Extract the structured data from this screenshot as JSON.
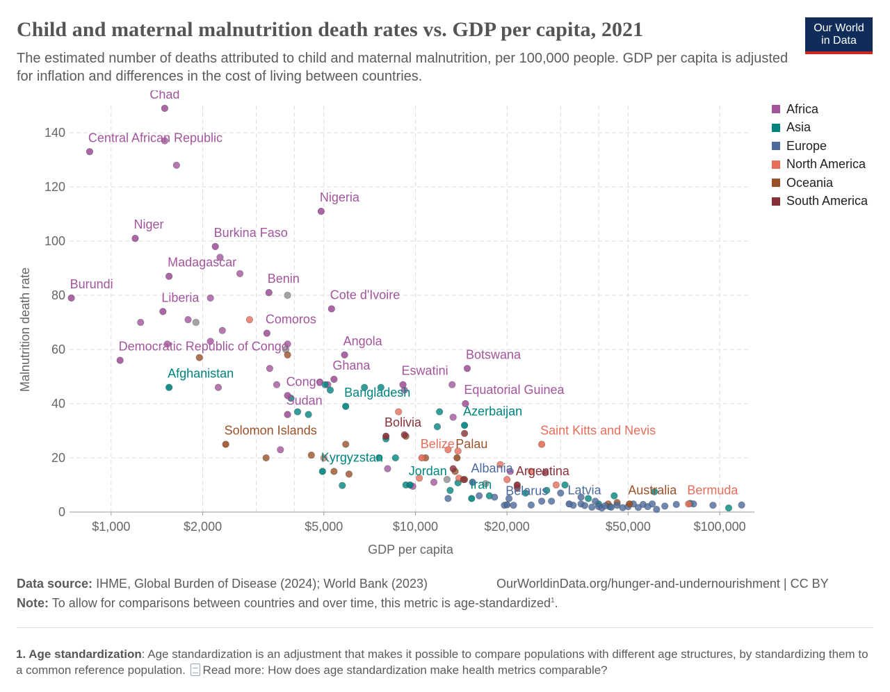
{
  "header": {
    "title": "Child and maternal malnutrition death rates vs. GDP per capita, 2021",
    "subtitle": "The estimated number of deaths attributed to child and maternal malnutrition, per 100,000 people. GDP per capita is adjusted for inflation and differences in the cost of living between countries.",
    "logo_line1": "Our World",
    "logo_line2": "in Data"
  },
  "legend": [
    {
      "name": "Africa",
      "color": "#a2559c"
    },
    {
      "name": "Asia",
      "color": "#00847e"
    },
    {
      "name": "Europe",
      "color": "#4c6a9c"
    },
    {
      "name": "North America",
      "color": "#e56e5a"
    },
    {
      "name": "Oceania",
      "color": "#9a5129"
    },
    {
      "name": "South America",
      "color": "#883039"
    }
  ],
  "footer": {
    "source_label": "Data source:",
    "source_text": "IHME, Global Burden of Disease (2024); World Bank (2023)",
    "source_right": "OurWorldinData.org/hunger-and-undernourishment | CC BY",
    "note_label": "Note:",
    "note_text": "To allow for comparisons between countries and over time, this metric is age-standardized",
    "note_sup": "1",
    "note_end": ".",
    "footnote_label": "1. Age standardization",
    "footnote_text": ": Age standardization is an adjustment that makes it possible to compare populations with different age structures, by standardizing them to a common reference population.",
    "read_more": "Read more: How does age standardization make health metrics comparable?"
  },
  "chart_data": {
    "type": "scatter",
    "title": "Child and maternal malnutrition death rates vs. GDP per capita, 2021",
    "xlabel": "GDP per capita",
    "ylabel": "Malnutrition death rate",
    "x_scale": "log",
    "xlim": [
      730,
      130000
    ],
    "ylim": [
      0,
      150
    ],
    "x_ticks": [
      {
        "value": 1000,
        "label": "$1,000"
      },
      {
        "value": 2000,
        "label": "$2,000"
      },
      {
        "value": 5000,
        "label": "$5,000"
      },
      {
        "value": 10000,
        "label": "$10,000"
      },
      {
        "value": 20000,
        "label": "$20,000"
      },
      {
        "value": 50000,
        "label": "$50,000"
      },
      {
        "value": 100000,
        "label": "$100,000"
      }
    ],
    "x_grid": [
      1000,
      2000,
      3000,
      4000,
      5000,
      10000,
      20000,
      30000,
      40000,
      50000,
      100000
    ],
    "y_ticks": [
      0,
      20,
      40,
      60,
      80,
      100,
      120,
      140
    ],
    "grid": true,
    "colors": {
      "Africa": "#a2559c",
      "Asia": "#00847e",
      "Europe": "#4c6a9c",
      "North America": "#e56e5a",
      "Oceania": "#9a5129",
      "South America": "#883039",
      "Other": "#8c8c8c"
    },
    "labeled_points": [
      {
        "name": "Chad",
        "region": "Africa",
        "x": 1500,
        "y": 149
      },
      {
        "name": "Central African Republic",
        "region": "Africa",
        "x": 850,
        "y": 133
      },
      {
        "name": "Nigeria",
        "region": "Africa",
        "x": 4900,
        "y": 111
      },
      {
        "name": "Niger",
        "region": "Africa",
        "x": 1200,
        "y": 101
      },
      {
        "name": "Burkina Faso",
        "region": "Africa",
        "x": 2200,
        "y": 98
      },
      {
        "name": "Madagascar",
        "region": "Africa",
        "x": 1550,
        "y": 87
      },
      {
        "name": "Burundi",
        "region": "Africa",
        "x": 740,
        "y": 79
      },
      {
        "name": "Benin",
        "region": "Africa",
        "x": 3300,
        "y": 81
      },
      {
        "name": "Liberia",
        "region": "Africa",
        "x": 1480,
        "y": 74
      },
      {
        "name": "Cote d'Ivoire",
        "region": "Africa",
        "x": 5300,
        "y": 75
      },
      {
        "name": "Comoros",
        "region": "Africa",
        "x": 3250,
        "y": 66
      },
      {
        "name": "Democratic Republic of Congo",
        "region": "Africa",
        "x": 1070,
        "y": 56
      },
      {
        "name": "Angola",
        "region": "Africa",
        "x": 5850,
        "y": 58
      },
      {
        "name": "Botswana",
        "region": "Africa",
        "x": 14800,
        "y": 53
      },
      {
        "name": "Afghanistan",
        "region": "Asia",
        "x": 1550,
        "y": 46
      },
      {
        "name": "Ghana",
        "region": "Africa",
        "x": 5400,
        "y": 49
      },
      {
        "name": "Eswatini",
        "region": "Africa",
        "x": 9100,
        "y": 47
      },
      {
        "name": "Congo",
        "region": "Africa",
        "x": 3800,
        "y": 43
      },
      {
        "name": "Bangladesh",
        "region": "Asia",
        "x": 5900,
        "y": 39
      },
      {
        "name": "Equatorial Guinea",
        "region": "Africa",
        "x": 14600,
        "y": 40
      },
      {
        "name": "Sudan",
        "region": "Africa",
        "x": 3800,
        "y": 36
      },
      {
        "name": "Azerbaijan",
        "region": "Asia",
        "x": 14500,
        "y": 32
      },
      {
        "name": "Bolivia",
        "region": "South America",
        "x": 8000,
        "y": 28
      },
      {
        "name": "Solomon Islands",
        "region": "Oceania",
        "x": 2380,
        "y": 25
      },
      {
        "name": "Saint Kitts and Nevis",
        "region": "North America",
        "x": 26000,
        "y": 25
      },
      {
        "name": "Belize",
        "region": "North America",
        "x": 10500,
        "y": 20
      },
      {
        "name": "Palau",
        "region": "Oceania",
        "x": 13700,
        "y": 20
      },
      {
        "name": "Kyrgyzstan",
        "region": "Asia",
        "x": 4950,
        "y": 15
      },
      {
        "name": "Albania",
        "region": "Europe",
        "x": 15400,
        "y": 11
      },
      {
        "name": "Jordan",
        "region": "Asia",
        "x": 9600,
        "y": 10
      },
      {
        "name": "Argentina",
        "region": "South America",
        "x": 21600,
        "y": 10
      },
      {
        "name": "Iran",
        "region": "Asia",
        "x": 15300,
        "y": 5
      },
      {
        "name": "Belarus",
        "region": "Europe",
        "x": 20000,
        "y": 2.7
      },
      {
        "name": "Latvia",
        "region": "Europe",
        "x": 32000,
        "y": 3
      },
      {
        "name": "Australia",
        "region": "Oceania",
        "x": 50500,
        "y": 3
      },
      {
        "name": "Bermuda",
        "region": "North America",
        "x": 79000,
        "y": 3
      }
    ],
    "points": [
      [
        "Africa",
        1500,
        137
      ],
      [
        "Africa",
        1640,
        128
      ],
      [
        "Africa",
        2280,
        94
      ],
      [
        "Africa",
        2650,
        88
      ],
      [
        "Africa",
        2120,
        79
      ],
      [
        "Africa",
        1790,
        71
      ],
      [
        "Africa",
        1250,
        70
      ],
      [
        "Africa",
        2320,
        67
      ],
      [
        "Africa",
        1530,
        62
      ],
      [
        "Africa",
        2120,
        63
      ],
      [
        "Africa",
        3800,
        62
      ],
      [
        "Africa",
        3320,
        53
      ],
      [
        "Africa",
        3500,
        47
      ],
      [
        "Africa",
        2250,
        46
      ],
      [
        "Africa",
        4850,
        48
      ],
      [
        "Africa",
        5150,
        47
      ],
      [
        "Africa",
        13200,
        47
      ],
      [
        "Africa",
        9200,
        45
      ],
      [
        "Africa",
        3600,
        23
      ],
      [
        "Africa",
        13300,
        35
      ],
      [
        "Africa",
        8100,
        16
      ],
      [
        "Africa",
        9800,
        9.5
      ],
      [
        "Africa",
        11500,
        11
      ],
      [
        "Africa",
        20500,
        15
      ],
      [
        "Other",
        1900,
        70
      ],
      [
        "Other",
        3800,
        80
      ],
      [
        "Other",
        3750,
        60
      ],
      [
        "Other",
        17000,
        10.5
      ],
      [
        "Other",
        12700,
        12
      ],
      [
        "Asia",
        3900,
        42
      ],
      [
        "Asia",
        4100,
        37
      ],
      [
        "Asia",
        4450,
        36
      ],
      [
        "Asia",
        5050,
        47
      ],
      [
        "Asia",
        5250,
        45
      ],
      [
        "Asia",
        6800,
        46
      ],
      [
        "Asia",
        7700,
        46
      ],
      [
        "Asia",
        12000,
        37
      ],
      [
        "Asia",
        11800,
        31.5
      ],
      [
        "Asia",
        8000,
        27
      ],
      [
        "Asia",
        7600,
        20
      ],
      [
        "Asia",
        8600,
        20
      ],
      [
        "Asia",
        9300,
        10
      ],
      [
        "Asia",
        5750,
        9.8
      ],
      [
        "Asia",
        13000,
        8
      ],
      [
        "Asia",
        13800,
        10.8
      ],
      [
        "Asia",
        17500,
        6
      ],
      [
        "Asia",
        23000,
        7
      ],
      [
        "Asia",
        27000,
        8
      ],
      [
        "Asia",
        31000,
        10
      ],
      [
        "Asia",
        43500,
        2
      ],
      [
        "Asia",
        45000,
        6
      ],
      [
        "Asia",
        61000,
        7.5
      ],
      [
        "Asia",
        80000,
        3.2
      ],
      [
        "Asia",
        107000,
        1.5
      ],
      [
        "Asia",
        40000,
        3
      ],
      [
        "Asia",
        37000,
        5
      ],
      [
        "North America",
        2850,
        71
      ],
      [
        "North America",
        8800,
        37
      ],
      [
        "North America",
        5000,
        20
      ],
      [
        "North America",
        10300,
        12.5
      ],
      [
        "North America",
        12800,
        23
      ],
      [
        "North America",
        13800,
        22.5
      ],
      [
        "North America",
        19000,
        17.5
      ],
      [
        "North America",
        20000,
        12
      ],
      [
        "North America",
        13900,
        12.5
      ],
      [
        "North America",
        29000,
        10
      ],
      [
        "North America",
        24000,
        15
      ],
      [
        "Oceania",
        1950,
        57
      ],
      [
        "Oceania",
        3800,
        58
      ],
      [
        "Oceania",
        3230,
        20
      ],
      [
        "Oceania",
        4550,
        21
      ],
      [
        "Oceania",
        5400,
        15
      ],
      [
        "Oceania",
        5900,
        25
      ],
      [
        "Oceania",
        6050,
        14
      ],
      [
        "Oceania",
        9300,
        28
      ],
      [
        "Oceania",
        10800,
        20
      ],
      [
        "Oceania",
        13500,
        15
      ],
      [
        "Oceania",
        14500,
        12
      ],
      [
        "Oceania",
        46000,
        3.5
      ],
      [
        "Oceania",
        43000,
        3
      ],
      [
        "South America",
        9200,
        28.5
      ],
      [
        "South America",
        13300,
        16
      ],
      [
        "South America",
        14400,
        12
      ],
      [
        "South America",
        14500,
        29
      ],
      [
        "South America",
        21600,
        9
      ],
      [
        "South America",
        26700,
        14.5
      ],
      [
        "Europe",
        12800,
        5
      ],
      [
        "Europe",
        16200,
        6
      ],
      [
        "Europe",
        18200,
        5.5
      ],
      [
        "Europe",
        19600,
        2.5
      ],
      [
        "Europe",
        20300,
        5
      ],
      [
        "Europe",
        21000,
        2.5
      ],
      [
        "Europe",
        24000,
        2.6
      ],
      [
        "Europe",
        26000,
        4
      ],
      [
        "Europe",
        28000,
        4
      ],
      [
        "Europe",
        30000,
        7
      ],
      [
        "Europe",
        33000,
        2.5
      ],
      [
        "Europe",
        35000,
        3
      ],
      [
        "Europe",
        36000,
        2.4
      ],
      [
        "Europe",
        38000,
        1.8
      ],
      [
        "Europe",
        40000,
        2
      ],
      [
        "Europe",
        41000,
        1.5
      ],
      [
        "Europe",
        42000,
        2.3
      ],
      [
        "Europe",
        44000,
        1.8
      ],
      [
        "Europe",
        46000,
        2.5
      ],
      [
        "Europe",
        48000,
        1.6
      ],
      [
        "Europe",
        50000,
        2
      ],
      [
        "Europe",
        52000,
        3
      ],
      [
        "Europe",
        54000,
        1.7
      ],
      [
        "Europe",
        56000,
        2.8
      ],
      [
        "Europe",
        58000,
        2
      ],
      [
        "Europe",
        60000,
        3
      ],
      [
        "Europe",
        62000,
        1
      ],
      [
        "Europe",
        66000,
        2.2
      ],
      [
        "Europe",
        72000,
        2.8
      ],
      [
        "Europe",
        82000,
        3
      ],
      [
        "Europe",
        95000,
        2.5
      ],
      [
        "Europe",
        118000,
        2.6
      ],
      [
        "Europe",
        35000,
        5.5
      ],
      [
        "Europe",
        39000,
        4
      ]
    ]
  }
}
